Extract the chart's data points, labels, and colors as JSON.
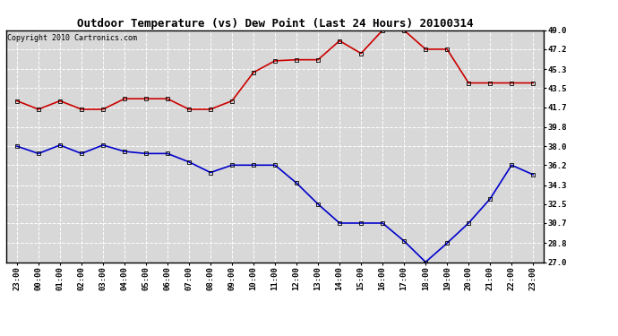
{
  "title": "Outdoor Temperature (vs) Dew Point (Last 24 Hours) 20100314",
  "copyright": "Copyright 2010 Cartronics.com",
  "x_labels": [
    "23:00",
    "00:00",
    "01:00",
    "02:00",
    "03:00",
    "04:00",
    "05:00",
    "06:00",
    "07:00",
    "08:00",
    "09:00",
    "10:00",
    "11:00",
    "12:00",
    "13:00",
    "14:00",
    "15:00",
    "16:00",
    "17:00",
    "18:00",
    "19:00",
    "20:00",
    "21:00",
    "22:00",
    "23:00"
  ],
  "temp_data": [
    42.3,
    41.5,
    42.3,
    41.5,
    41.5,
    42.5,
    42.5,
    42.5,
    41.5,
    41.5,
    42.3,
    45.0,
    46.1,
    46.2,
    46.2,
    48.0,
    46.8,
    49.0,
    49.0,
    47.2,
    47.2,
    44.0,
    44.0,
    44.0,
    44.0
  ],
  "dew_data": [
    38.0,
    37.3,
    38.1,
    37.3,
    38.1,
    37.5,
    37.3,
    37.3,
    36.5,
    35.5,
    36.2,
    36.2,
    36.2,
    34.5,
    32.5,
    30.7,
    30.7,
    30.7,
    29.0,
    27.0,
    28.8,
    30.7,
    33.0,
    36.2,
    35.3
  ],
  "ylim": [
    27.0,
    49.0
  ],
  "yticks": [
    27.0,
    28.8,
    30.7,
    32.5,
    34.3,
    36.2,
    38.0,
    39.8,
    41.7,
    43.5,
    45.3,
    47.2,
    49.0
  ],
  "temp_color": "#cc0000",
  "dew_color": "#0000cc",
  "bg_color": "#d8d8d8",
  "grid_color": "#ffffff",
  "marker": "s",
  "marker_size": 3,
  "line_width": 1.2,
  "title_fontsize": 9,
  "tick_fontsize": 6.5,
  "copyright_fontsize": 6
}
